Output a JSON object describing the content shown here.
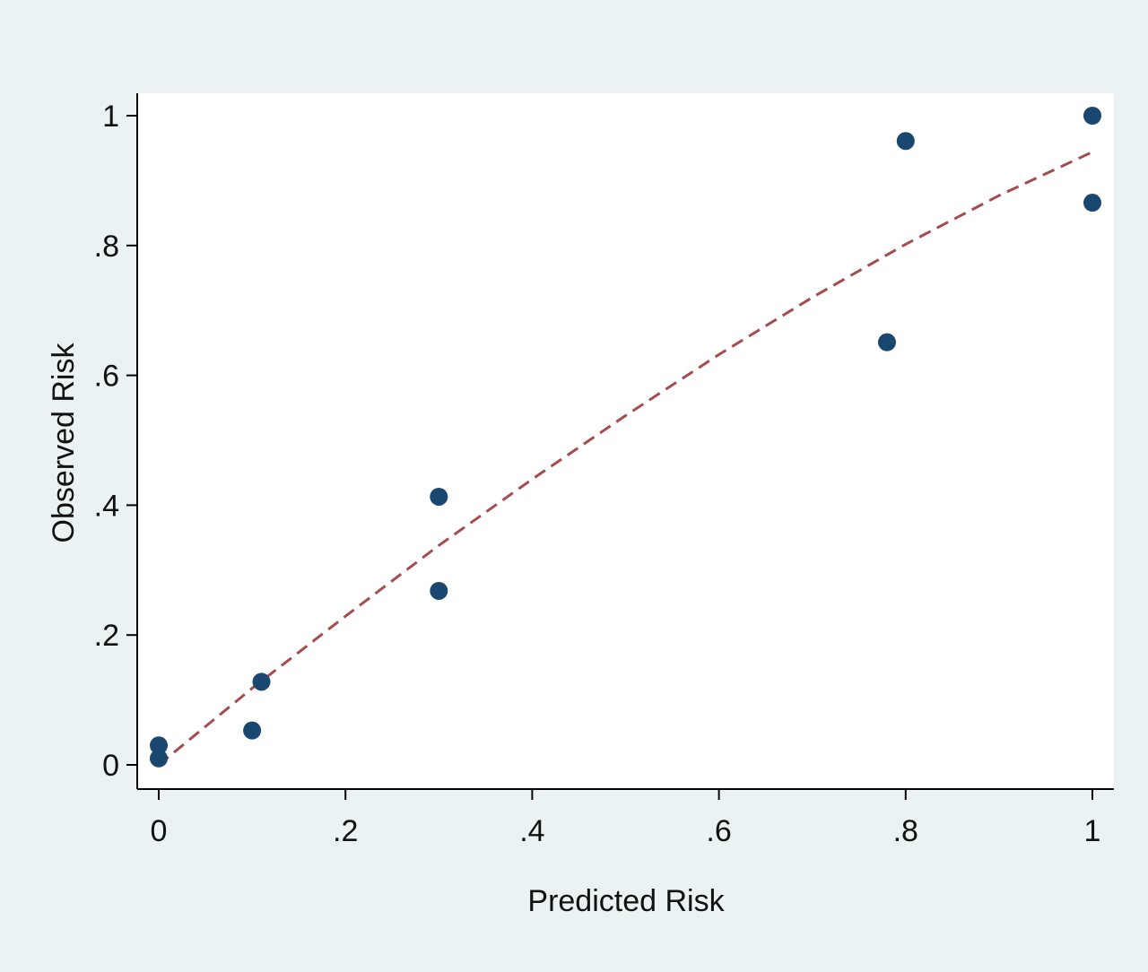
{
  "chart_data": {
    "type": "scatter",
    "title": "",
    "xlabel": "Predicted Risk",
    "ylabel": "Observed Risk",
    "xlim": [
      0,
      1
    ],
    "ylim": [
      0,
      1
    ],
    "xticks": [
      0,
      0.2,
      0.4,
      0.6,
      0.8,
      1
    ],
    "xtick_labels": [
      "0",
      ".2",
      ".4",
      ".6",
      ".8",
      "1"
    ],
    "yticks": [
      0,
      0.2,
      0.4,
      0.6,
      0.8,
      1
    ],
    "ytick_labels": [
      "0",
      ".2",
      ".4",
      ".6",
      ".8",
      "1"
    ],
    "grid": false,
    "series": [
      {
        "type": "scatter",
        "points": [
          {
            "x": 0.0,
            "y": 0.03
          },
          {
            "x": 0.0,
            "y": 0.01
          },
          {
            "x": 0.1,
            "y": 0.053
          },
          {
            "x": 0.11,
            "y": 0.128
          },
          {
            "x": 0.3,
            "y": 0.413
          },
          {
            "x": 0.3,
            "y": 0.268
          },
          {
            "x": 0.78,
            "y": 0.651
          },
          {
            "x": 0.8,
            "y": 0.961
          },
          {
            "x": 1.0,
            "y": 1.0
          },
          {
            "x": 1.0,
            "y": 0.866
          }
        ]
      },
      {
        "type": "line",
        "style": "dashed",
        "points": [
          {
            "x": 0.0,
            "y": 0.0
          },
          {
            "x": 0.1,
            "y": 0.118
          },
          {
            "x": 0.2,
            "y": 0.229
          },
          {
            "x": 0.3,
            "y": 0.338
          },
          {
            "x": 0.4,
            "y": 0.44
          },
          {
            "x": 0.5,
            "y": 0.538
          },
          {
            "x": 0.6,
            "y": 0.632
          },
          {
            "x": 0.7,
            "y": 0.72
          },
          {
            "x": 0.8,
            "y": 0.802
          },
          {
            "x": 0.9,
            "y": 0.877
          },
          {
            "x": 1.0,
            "y": 0.944
          }
        ]
      }
    ],
    "colors": {
      "outer_background": "#eaf2f3",
      "plot_background": "#ffffff",
      "marker": "#1a476f",
      "fit_line": "#a44c4f",
      "axis": "#000000"
    }
  }
}
